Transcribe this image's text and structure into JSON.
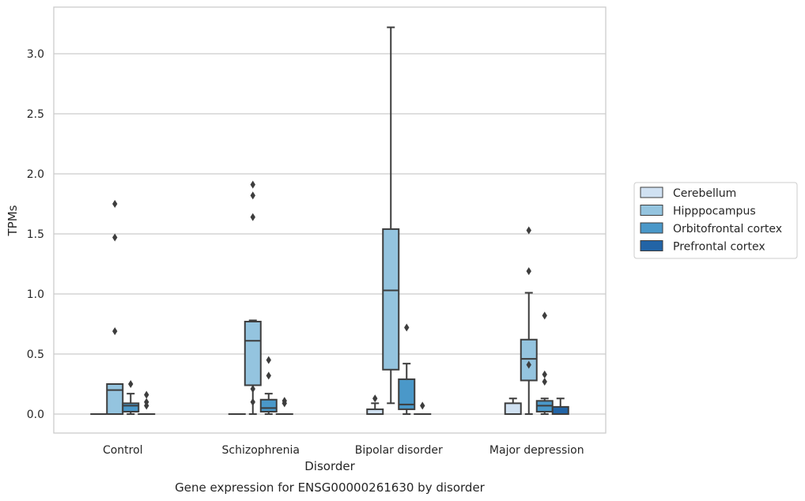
{
  "chart_data": {
    "type": "box",
    "xlabel": "Disorder",
    "ylabel": "TPMs",
    "caption": "Gene expression for ENSG00000261630 by disorder",
    "ylim": [
      -0.16,
      3.38
    ],
    "yticks": [
      "0.0",
      "0.5",
      "1.0",
      "1.5",
      "2.0",
      "2.5",
      "3.0"
    ],
    "ytick_values": [
      0.0,
      0.5,
      1.0,
      1.5,
      2.0,
      2.5,
      3.0
    ],
    "grid": "horizontal",
    "legend_position": "right",
    "categories": [
      "Control",
      "Schizophrenia",
      "Bipolar disorder",
      "Major depression"
    ],
    "series": [
      {
        "name": "Cerebellum",
        "color": "#d0e1f2",
        "boxes": [
          {
            "q1": 0.0,
            "median": 0.0,
            "q3": 0.0,
            "whisker_low": 0.0,
            "whisker_high": 0.0,
            "outliers": []
          },
          {
            "q1": 0.0,
            "median": 0.0,
            "q3": 0.0,
            "whisker_low": 0.0,
            "whisker_high": 0.0,
            "outliers": []
          },
          {
            "q1": 0.0,
            "median": 0.0,
            "q3": 0.04,
            "whisker_low": 0.0,
            "whisker_high": 0.09,
            "outliers": [
              0.13
            ]
          },
          {
            "q1": 0.0,
            "median": 0.0,
            "q3": 0.09,
            "whisker_low": 0.0,
            "whisker_high": 0.13,
            "outliers": []
          }
        ]
      },
      {
        "name": "Hipppocampus",
        "color": "#94c4df",
        "boxes": [
          {
            "q1": 0.0,
            "median": 0.2,
            "q3": 0.25,
            "whisker_low": 0.0,
            "whisker_high": 0.25,
            "outliers": [
              0.69,
              1.47,
              1.75
            ]
          },
          {
            "q1": 0.24,
            "median": 0.61,
            "q3": 0.77,
            "whisker_low": 0.0,
            "whisker_high": 0.78,
            "outliers": [
              0.1,
              0.21,
              1.64,
              1.82,
              1.91
            ]
          },
          {
            "q1": 0.37,
            "median": 1.03,
            "q3": 1.54,
            "whisker_low": 0.09,
            "whisker_high": 3.22,
            "outliers": []
          },
          {
            "q1": 0.28,
            "median": 0.46,
            "q3": 0.62,
            "whisker_low": 0.0,
            "whisker_high": 1.01,
            "outliers": [
              0.41,
              1.19,
              1.53
            ]
          }
        ]
      },
      {
        "name": "Orbitofrontal cortex",
        "color": "#4a98c9",
        "boxes": [
          {
            "q1": 0.02,
            "median": 0.07,
            "q3": 0.09,
            "whisker_low": 0.0,
            "whisker_high": 0.17,
            "outliers": [
              0.25
            ]
          },
          {
            "q1": 0.02,
            "median": 0.05,
            "q3": 0.12,
            "whisker_low": 0.0,
            "whisker_high": 0.17,
            "outliers": [
              0.32,
              0.45
            ]
          },
          {
            "q1": 0.04,
            "median": 0.08,
            "q3": 0.29,
            "whisker_low": 0.0,
            "whisker_high": 0.42,
            "outliers": [
              0.72
            ]
          },
          {
            "q1": 0.02,
            "median": 0.07,
            "q3": 0.11,
            "whisker_low": 0.0,
            "whisker_high": 0.13,
            "outliers": [
              0.27,
              0.33,
              0.82
            ]
          }
        ]
      },
      {
        "name": "Prefrontal cortex",
        "color": "#2264a6",
        "boxes": [
          {
            "q1": 0.0,
            "median": 0.0,
            "q3": 0.0,
            "whisker_low": 0.0,
            "whisker_high": 0.0,
            "outliers": [
              0.07,
              0.1,
              0.16
            ]
          },
          {
            "q1": 0.0,
            "median": 0.0,
            "q3": 0.0,
            "whisker_low": 0.0,
            "whisker_high": 0.0,
            "outliers": [
              0.09,
              0.11
            ]
          },
          {
            "q1": 0.0,
            "median": 0.0,
            "q3": 0.0,
            "whisker_low": 0.0,
            "whisker_high": 0.0,
            "outliers": [
              0.07
            ]
          },
          {
            "q1": 0.0,
            "median": 0.0,
            "q3": 0.06,
            "whisker_low": 0.0,
            "whisker_high": 0.13,
            "outliers": []
          }
        ]
      }
    ]
  }
}
